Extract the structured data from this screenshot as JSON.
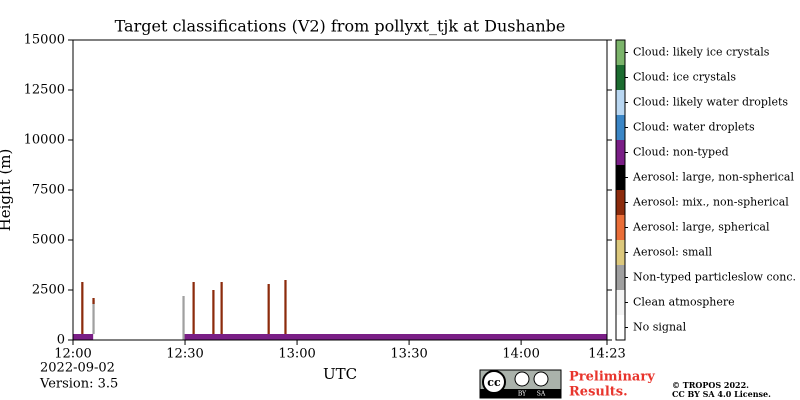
{
  "chart_data": {
    "type": "classification",
    "title": "Target classifications (V2) from pollyxt_tjk at Dushanbe",
    "x_label": "UTC",
    "y_label": "Height (m)",
    "date": "2022-09-02",
    "version": "Version: 3.5",
    "preliminary": [
      "Preliminary",
      "Results."
    ],
    "copyright": [
      "© TROPOS 2022.",
      "CC BY SA 4.0 License."
    ],
    "badge": [
      "cc",
      "BY",
      "SA"
    ],
    "xlim": [
      0,
      143
    ],
    "xticks": [
      {
        "value": 0,
        "label": "12:00"
      },
      {
        "value": 30,
        "label": "12:30"
      },
      {
        "value": 60,
        "label": "13:00"
      },
      {
        "value": 90,
        "label": "13:30"
      },
      {
        "value": 120,
        "label": "14:00"
      },
      {
        "value": 143,
        "label": "14:23"
      }
    ],
    "ylim": [
      0,
      15000
    ],
    "yticks": [
      0,
      2500,
      5000,
      7500,
      10000,
      12500,
      15000
    ],
    "classes": [
      {
        "label": "No signal",
        "color": "#ffffff"
      },
      {
        "label": "Clean atmosphere",
        "color": "#f4f4f4"
      },
      {
        "label": "Non-typed particleslow conc.",
        "color": "#a0a0a0"
      },
      {
        "label": "Aerosol: small",
        "color": "#dcc87c"
      },
      {
        "label": "Aerosol: large, spherical",
        "color": "#ea6e38"
      },
      {
        "label": "Aerosol: mix., non-spherical",
        "color": "#8c2b0c"
      },
      {
        "label": "Aerosol: large, non-spherical",
        "color": "#000000"
      },
      {
        "label": "Cloud: non-typed",
        "color": "#7a1e86"
      },
      {
        "label": "Cloud: water droplets",
        "color": "#3b86c6"
      },
      {
        "label": "Cloud: likely water droplets",
        "color": "#b9d7f2"
      },
      {
        "label": "Cloud: ice crystals",
        "color": "#1c6c30"
      },
      {
        "label": "Cloud: likely ice crystals",
        "color": "#7bb46a"
      }
    ],
    "regions": [
      {
        "class": 7,
        "x": [
          0,
          5.4
        ],
        "y": [
          0,
          300
        ]
      },
      {
        "class": 7,
        "x": [
          29.5,
          143
        ],
        "y": [
          0,
          300
        ]
      },
      {
        "class": 5,
        "x": [
          2.2,
          2.8
        ],
        "y": [
          300,
          2900
        ]
      },
      {
        "class": 2,
        "x": [
          5.2,
          5.8
        ],
        "y": [
          300,
          2000
        ]
      },
      {
        "class": 5,
        "x": [
          5.2,
          5.8
        ],
        "y": [
          1800,
          2100
        ]
      },
      {
        "class": 2,
        "x": [
          29.3,
          29.9
        ],
        "y": [
          0,
          2200
        ]
      },
      {
        "class": 5,
        "x": [
          32.0,
          32.6
        ],
        "y": [
          300,
          2900
        ]
      },
      {
        "class": 5,
        "x": [
          37.3,
          37.9
        ],
        "y": [
          300,
          2500
        ]
      },
      {
        "class": 5,
        "x": [
          39.5,
          40.1
        ],
        "y": [
          300,
          2900
        ]
      },
      {
        "class": 5,
        "x": [
          52.1,
          52.7
        ],
        "y": [
          300,
          2800
        ]
      },
      {
        "class": 5,
        "x": [
          56.6,
          57.2
        ],
        "y": [
          300,
          3000
        ]
      }
    ]
  }
}
